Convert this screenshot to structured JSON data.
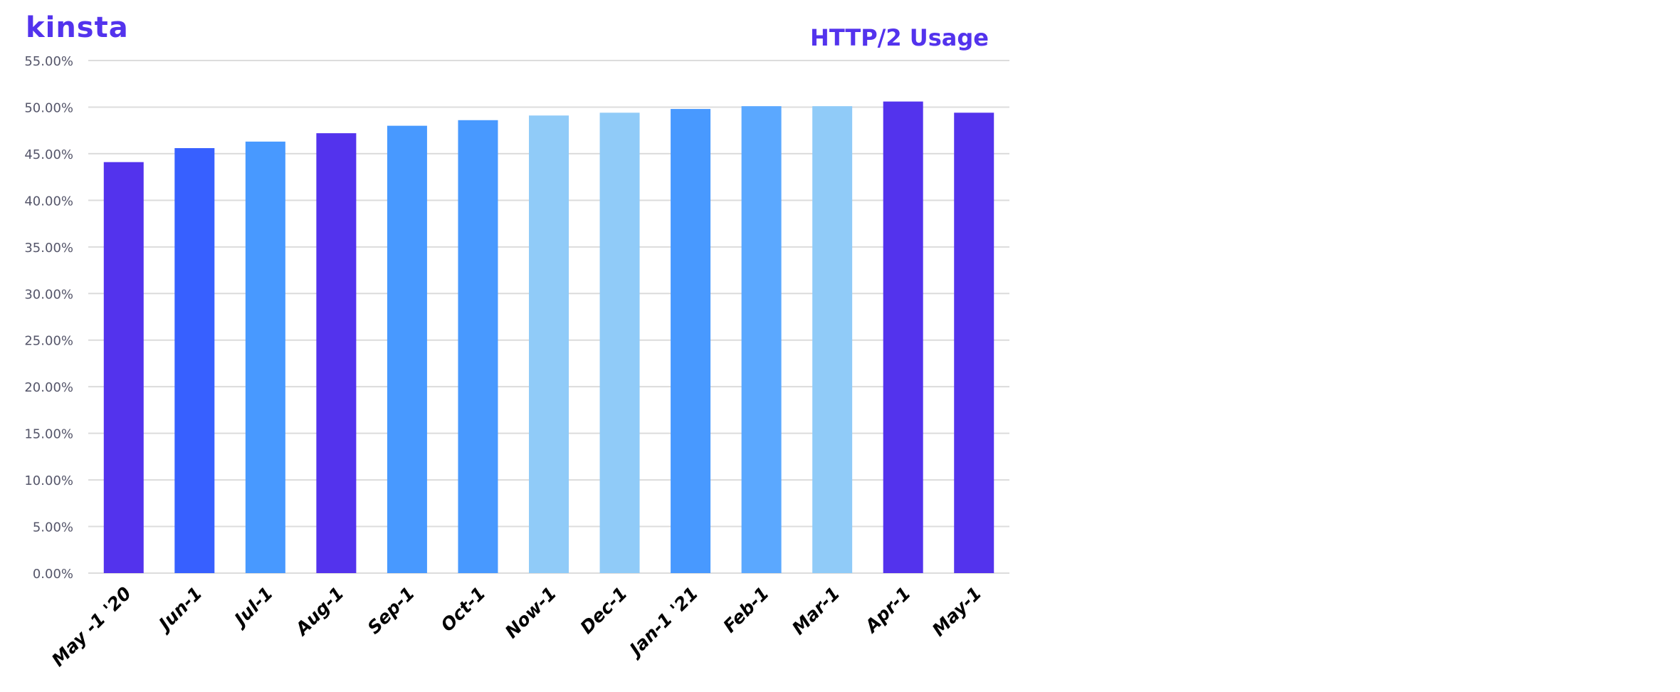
{
  "brand": {
    "logo_text": "kinsta",
    "color": "#5333ED"
  },
  "chart_data": {
    "type": "bar",
    "title": "HTTP/2 Usage",
    "xlabel": "",
    "ylabel": "",
    "categories": [
      "May -1 '20",
      "Jun-1",
      "Jul-1",
      "Aug-1",
      "Sep-1",
      "Oct-1",
      "Now-1",
      "Dec-1",
      "Jan-1 '21",
      "Feb-1",
      "Mar-1",
      "Apr-1",
      "May-1"
    ],
    "values": [
      44.1,
      45.6,
      46.3,
      47.2,
      48.0,
      48.6,
      49.1,
      49.4,
      49.8,
      50.1,
      50.1,
      50.6,
      49.4
    ],
    "colors": [
      "#5333ED",
      "#3760FF",
      "#4899FF",
      "#5333ED",
      "#4899FF",
      "#4899FF",
      "#90CBF8",
      "#90CBF8",
      "#4899FF",
      "#5BA8FF",
      "#90CBF8",
      "#5333ED",
      "#5333ED"
    ],
    "ylim": [
      0,
      55
    ],
    "yticks": [
      "0.00%",
      "5.00%",
      "10.00%",
      "15.00%",
      "20.00%",
      "25.00%",
      "30.00%",
      "35.00%",
      "40.00%",
      "45.00%",
      "50.00%",
      "55.00%"
    ],
    "grid": true,
    "legend": "none"
  }
}
